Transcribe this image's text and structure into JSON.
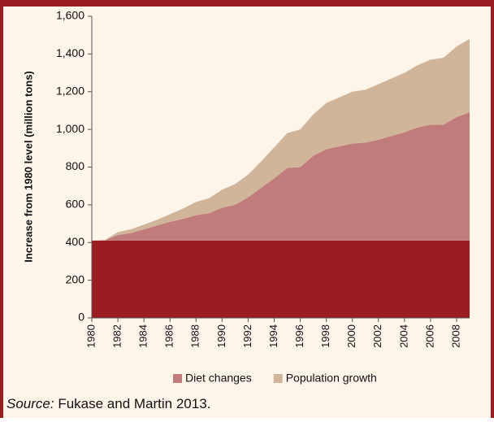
{
  "chart_data": {
    "type": "stacked-area",
    "y_label": "Increase from 1980 level (million tons)",
    "x": [
      1980,
      1981,
      1982,
      1983,
      1984,
      1985,
      1986,
      1987,
      1988,
      1989,
      1990,
      1991,
      1992,
      1993,
      1994,
      1995,
      1996,
      1997,
      1998,
      1999,
      2000,
      2001,
      2002,
      2003,
      2004,
      2005,
      2006,
      2007,
      2008,
      2009
    ],
    "xlim": [
      1980,
      2009
    ],
    "xticks": [
      1980,
      1982,
      1984,
      1986,
      1988,
      1990,
      1992,
      1994,
      1996,
      1998,
      2000,
      2002,
      2004,
      2006,
      2008
    ],
    "ylim": [
      0,
      1600
    ],
    "yticks": [
      0,
      200,
      400,
      600,
      800,
      {
        "value": 1000,
        "label": "1,000"
      },
      {
        "value": 1200,
        "label": "1,200"
      },
      {
        "value": 1400,
        "label": "1,400"
      },
      {
        "value": 1600,
        "label": "1,600"
      }
    ],
    "series": [
      {
        "color": "#9b1c22",
        "values": [
          410,
          410,
          410,
          410,
          410,
          410,
          410,
          410,
          410,
          410,
          410,
          410,
          410,
          410,
          410,
          410,
          410,
          410,
          410,
          410,
          410,
          410,
          410,
          410,
          410,
          410,
          410,
          410,
          410,
          410
        ]
      },
      {
        "name": "Diet changes",
        "color": "#c07b7b",
        "values": [
          0,
          2,
          30,
          40,
          60,
          80,
          100,
          115,
          135,
          145,
          175,
          190,
          230,
          280,
          330,
          385,
          390,
          450,
          485,
          500,
          515,
          520,
          535,
          555,
          575,
          600,
          615,
          615,
          655,
          680
        ]
      },
      {
        "name": "Population growth",
        "color": "#d1b59b",
        "values": [
          0,
          1,
          15,
          20,
          25,
          30,
          40,
          55,
          70,
          80,
          95,
          110,
          120,
          140,
          165,
          185,
          200,
          220,
          245,
          260,
          275,
          280,
          295,
          305,
          315,
          330,
          345,
          355,
          375,
          390
        ]
      }
    ],
    "source_label": "Source:",
    "source_text": "Fukase and Martin 2013."
  }
}
